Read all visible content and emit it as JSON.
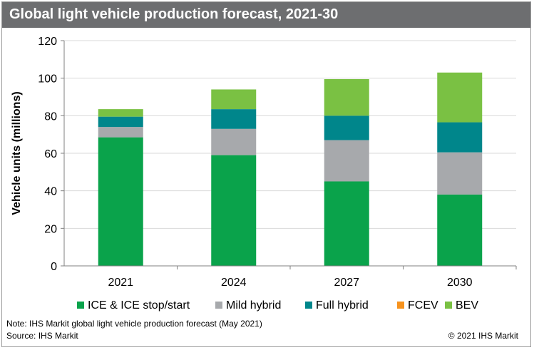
{
  "header": {
    "title": "Global light vehicle production forecast, 2021-30"
  },
  "footer": {
    "note": "Note: IHS Markit global light vehicle production forecast (May 2021)",
    "source": "Source: IHS Markit",
    "copyright": "© 2021 IHS Markit"
  },
  "colors": {
    "title_bar": "#6d6e70",
    "ice": "#0aa34b",
    "mild_hybrid": "#a7a9ac",
    "full_hybrid": "#00868b",
    "fcev": "#f7931e",
    "bev": "#7ac143"
  },
  "chart_data": {
    "type": "bar",
    "stacked": true,
    "title": "Global light vehicle production forecast, 2021-30",
    "xlabel": "",
    "ylabel": "Vehicle units (millions)",
    "ylim": [
      0,
      120
    ],
    "yticks": [
      0,
      20,
      40,
      60,
      80,
      100,
      120
    ],
    "grid": true,
    "legend_position": "bottom",
    "categories": [
      "2021",
      "2024",
      "2027",
      "2030"
    ],
    "series": [
      {
        "name": "ICE & ICE stop/start",
        "color": "#0aa34b",
        "values": [
          68.5,
          59,
          45,
          38
        ]
      },
      {
        "name": "Mild hybrid",
        "color": "#a7a9ac",
        "values": [
          5.5,
          14,
          22,
          22.5
        ]
      },
      {
        "name": "Full hybrid",
        "color": "#00868b",
        "values": [
          5.5,
          10.5,
          13,
          16
        ]
      },
      {
        "name": "FCEV",
        "color": "#f7931e",
        "values": [
          0,
          0,
          0,
          0
        ]
      },
      {
        "name": "BEV",
        "color": "#7ac143",
        "values": [
          4,
          10.5,
          19.5,
          26.5
        ]
      }
    ]
  }
}
